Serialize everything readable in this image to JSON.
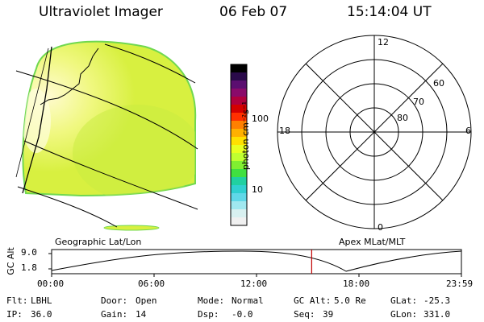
{
  "header": {
    "instrument": "Ultraviolet Imager",
    "date": "06 Feb 07",
    "time": "15:14:04 UT"
  },
  "colorbar": {
    "unit_label": "photon cm⁻²s⁻¹",
    "ticks": [
      "100",
      "10"
    ],
    "colors": [
      "#000000",
      "#2a0a4a",
      "#5b0e70",
      "#8a0a6a",
      "#b0003c",
      "#d40000",
      "#ff3000",
      "#ff8000",
      "#ffb000",
      "#ffe000",
      "#e8ff20",
      "#c0ff30",
      "#80f030",
      "#40e040",
      "#20d0a0",
      "#30d0d0",
      "#60d8e8",
      "#a0e8f0",
      "#d8f0f0",
      "#f0f0f0"
    ]
  },
  "polar": {
    "mlt_labels": {
      "top": "12",
      "left": "18",
      "right": "6",
      "bottom": "0"
    },
    "lat_labels": [
      "60",
      "70",
      "80"
    ]
  },
  "bottom_panel": {
    "left_title": "Geographic Lat/Lon",
    "right_title": "Apex MLat/MLT",
    "y_axis_label": "GC Alt",
    "y_ticks": [
      "9.0",
      "1.8"
    ],
    "x_ticks": [
      "00:00",
      "06:00",
      "12:00",
      "18:00",
      "23:59"
    ],
    "current_time_marker_hour": 15.23
  },
  "info": {
    "row1": [
      {
        "label": "Flt:",
        "value": "LBHL"
      },
      {
        "label": "Door:",
        "value": "Open"
      },
      {
        "label": "Mode:",
        "value": "Normal"
      },
      {
        "label": "GC Alt:",
        "value": "5.0 Re"
      },
      {
        "label": "GLat:",
        "value": "-25.3"
      }
    ],
    "row2": [
      {
        "label": "IP:",
        "value": "36.0"
      },
      {
        "label": "Gain:",
        "value": "14"
      },
      {
        "label": "Dsp:",
        "value": "-0.0"
      },
      {
        "label": "Seq:",
        "value": "39"
      },
      {
        "label": "GLon:",
        "value": "331.0"
      }
    ]
  },
  "colors": {
    "image_fill": "#d8f040",
    "image_edge": "#70d850",
    "image_bright": "#fff8b0",
    "marker": "#c00000"
  }
}
